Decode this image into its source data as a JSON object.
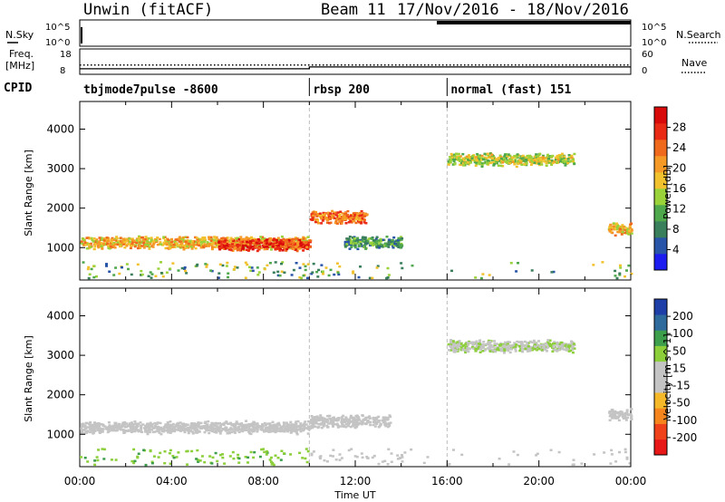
{
  "header": {
    "radar": "Unwin (fitACF)",
    "beam": "Beam 11",
    "date_range": "17/Nov/2016 - 18/Nov/2016"
  },
  "strips": {
    "nsky_label": "N.Sky",
    "nsky_ticks": [
      "10^5",
      "10^0"
    ],
    "nsearch_label": "N.Search",
    "freq_label": "Freq.",
    "freq_unit": "[MHz]",
    "freq_ticks": [
      "18",
      "8"
    ],
    "nave_label": "Nave",
    "nave_ticks": [
      "60",
      "0"
    ],
    "cpid_label": "CPID"
  },
  "chart_data": [
    {
      "type": "heatmap",
      "title": "Power",
      "xlabel": "Time UT",
      "ylabel": "Slant Range [km]",
      "xlim": [
        0,
        24
      ],
      "ylim": [
        180,
        4700
      ],
      "x_ticks": [
        "00:00",
        "04:00",
        "08:00",
        "12:00",
        "16:00",
        "20:00",
        "00:00"
      ],
      "y_ticks": [
        "1000",
        "2000",
        "3000",
        "4000"
      ],
      "colorbar_label": "Power [dB]",
      "colorbar_ticks": [
        "28",
        "24",
        "20",
        "16",
        "12",
        "8",
        "4"
      ],
      "colorbar_range": [
        0,
        30
      ],
      "colorbar_colors": [
        "#1d1cf0",
        "#2955a8",
        "#3a7f5c",
        "#4fa84c",
        "#9ad23a",
        "#f2c12e",
        "#f59a27",
        "#f06a1e",
        "#e92a14",
        "#d80a0a"
      ],
      "cpid_segments": [
        {
          "label": "tbjmode7pulse -8600",
          "start": 0,
          "end": 10
        },
        {
          "label": "rbsp 200",
          "start": 10,
          "end": 16
        },
        {
          "label": "normal (fast) 151",
          "start": 16,
          "end": 24
        }
      ],
      "frequency_mhz": [
        {
          "start": 0,
          "end": 10,
          "value": 10.2
        },
        {
          "start": 10,
          "end": 24,
          "value": 10.9
        }
      ],
      "nave": [
        {
          "start": 0,
          "end": 24,
          "value": 22
        }
      ],
      "features": [
        {
          "t0": 0.0,
          "t1": 10.0,
          "range_km": 1150,
          "value_db": 18
        },
        {
          "t0": 6.0,
          "t1": 10.0,
          "range_km": 1100,
          "value_db": 25
        },
        {
          "t0": 10.0,
          "t1": 12.5,
          "range_km": 1800,
          "value_db": 22
        },
        {
          "t0": 11.5,
          "t1": 14.0,
          "range_km": 1150,
          "value_db": 9
        },
        {
          "t0": 16.0,
          "t1": 21.5,
          "range_km": 3250,
          "value_db": 14
        },
        {
          "t0": 23.0,
          "t1": 24.0,
          "range_km": 1500,
          "value_db": 18
        }
      ]
    },
    {
      "type": "heatmap",
      "title": "Velocity",
      "xlabel": "Time UT",
      "ylabel": "Slant Range [km]",
      "xlim": [
        0,
        24
      ],
      "ylim": [
        180,
        4700
      ],
      "x_ticks": [
        "00:00",
        "04:00",
        "08:00",
        "12:00",
        "16:00",
        "20:00",
        "00:00"
      ],
      "y_ticks": [
        "1000",
        "2000",
        "3000",
        "4000"
      ],
      "colorbar_label": "Velocity [m s^-1]",
      "colorbar_ticks": [
        "200",
        "100",
        "50",
        "15",
        "-15",
        "-50",
        "-100",
        "-200"
      ],
      "colorbar_range": [
        -250,
        250
      ],
      "colorbar_colors": [
        "#e81818",
        "#f0421a",
        "#f5851c",
        "#f4b829",
        "#c4c4c4",
        "#c4c4c4",
        "#8ccf3a",
        "#3d9e4c",
        "#2e6a9c",
        "#1f3fa8"
      ],
      "features": [
        {
          "t0": 0.0,
          "t1": 10.0,
          "range_km": 1200,
          "value_ms": -20
        },
        {
          "t0": 10.0,
          "t1": 13.5,
          "range_km": 1350,
          "value_ms": 0
        },
        {
          "t0": 16.0,
          "t1": 21.5,
          "range_km": 3250,
          "value_ms": 40
        },
        {
          "t0": 23.0,
          "t1": 24.0,
          "range_km": 1500,
          "value_ms": 0
        }
      ]
    }
  ]
}
